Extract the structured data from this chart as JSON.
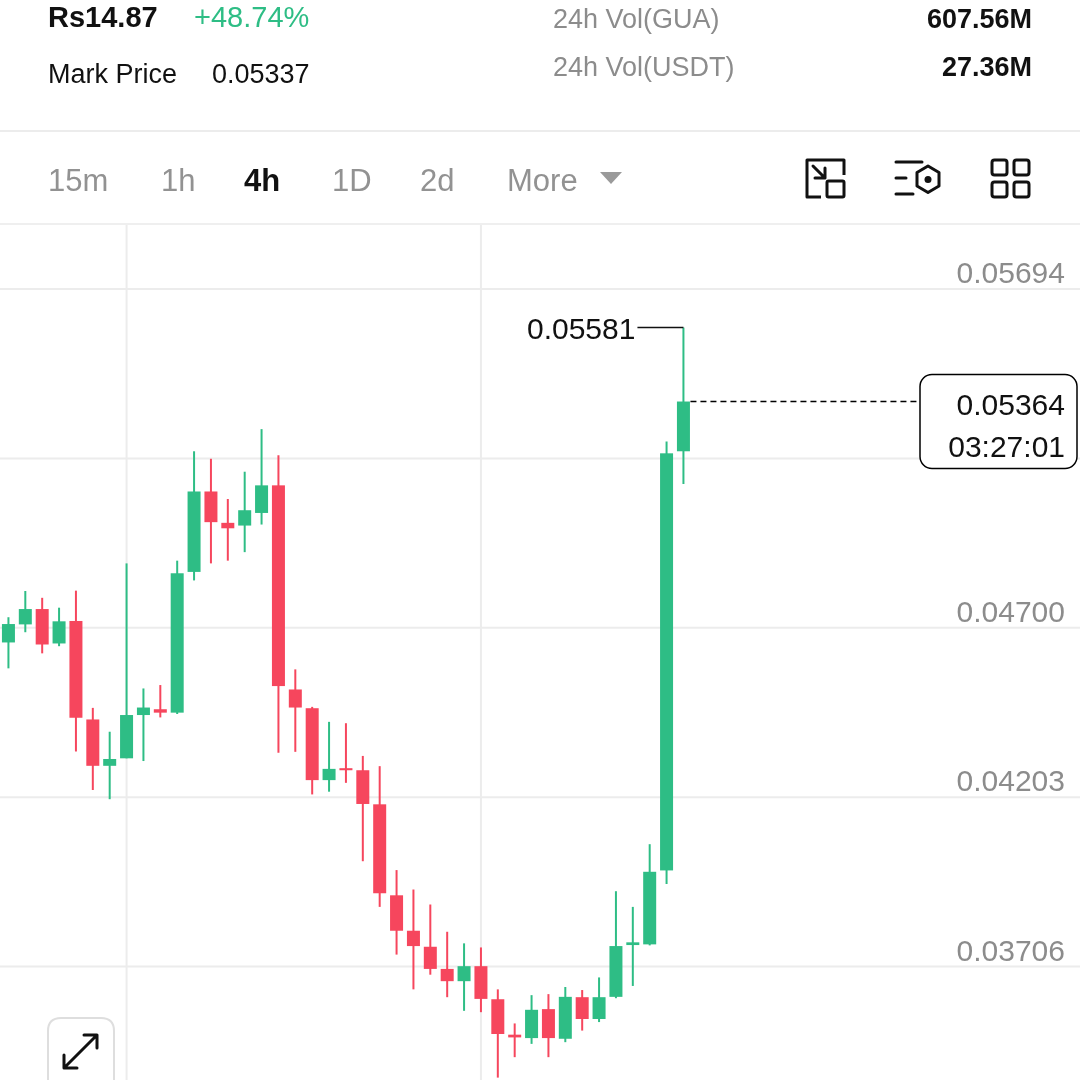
{
  "chart_data": [
    {
      "type": "other",
      "annotations": [
        "Rs14.87",
        "+48.74%",
        "Mark Price",
        "0.05337",
        "24h Vol(GUA)",
        "607.56M",
        "24h Vol(USDT)",
        "27.36M",
        "15m",
        "1h",
        "4h",
        "1D",
        "2d",
        "More"
      ]
    },
    {
      "type": "candlestick",
      "categories": [
        null,
        null,
        null,
        null,
        null,
        null,
        null,
        null,
        null,
        null,
        null,
        null,
        null,
        null,
        null,
        null,
        null,
        null,
        null,
        null,
        null,
        null,
        null,
        null,
        null,
        null,
        null,
        null,
        null,
        null,
        null,
        null,
        null,
        null,
        null,
        null,
        null,
        null,
        null,
        null,
        null,
        null,
        null,
        null,
        null,
        null,
        null,
        null,
        null,
        null,
        null,
        null,
        null,
        null,
        null,
        null,
        null,
        null,
        null,
        null,
        null,
        null,
        null,
        null
      ],
      "ohlc": [
        [
          0.04657,
          0.04731,
          0.04581,
          0.04711
        ],
        [
          0.0471,
          0.04808,
          0.04687,
          0.04755
        ],
        [
          0.04755,
          0.04788,
          0.04625,
          0.04651
        ],
        [
          0.04654,
          0.04759,
          0.04646,
          0.04719
        ],
        [
          0.0472,
          0.04809,
          0.04337,
          0.04436
        ],
        [
          0.04431,
          0.04465,
          0.04224,
          0.04295
        ],
        [
          0.04295,
          0.04395,
          0.04197,
          0.04315
        ],
        [
          0.04317,
          0.04889,
          0.04317,
          0.04444
        ],
        [
          0.04444,
          0.04522,
          0.04309,
          0.04466
        ],
        [
          0.04461,
          0.04532,
          0.04437,
          0.04451
        ],
        [
          0.04451,
          0.04897,
          0.04447,
          0.0486
        ],
        [
          0.04864,
          0.05218,
          0.04839,
          0.051
        ],
        [
          0.051,
          0.05196,
          0.04889,
          0.0501
        ],
        [
          0.05008,
          0.05078,
          0.04897,
          0.04992
        ],
        [
          0.05,
          0.05158,
          0.04922,
          0.05045
        ],
        [
          0.05037,
          0.05283,
          0.05003,
          0.05118
        ],
        [
          0.05118,
          0.05206,
          0.04333,
          0.04529
        ],
        [
          0.04519,
          0.04578,
          0.04336,
          0.04466
        ],
        [
          0.04464,
          0.04468,
          0.04211,
          0.04253
        ],
        [
          0.04253,
          0.04424,
          0.04219,
          0.04286
        ],
        [
          0.04288,
          0.0442,
          0.04245,
          0.04282
        ],
        [
          0.04282,
          0.04324,
          0.04015,
          0.04183
        ],
        [
          0.04182,
          0.04294,
          0.03881,
          0.03921
        ],
        [
          0.03915,
          0.03989,
          0.03741,
          0.03811
        ],
        [
          0.03811,
          0.03932,
          0.03639,
          0.03766
        ],
        [
          0.03764,
          0.03888,
          0.03682,
          0.03699
        ],
        [
          0.03699,
          0.03808,
          0.03616,
          0.03663
        ],
        [
          0.03663,
          0.03774,
          0.03576,
          0.03707
        ],
        [
          0.03707,
          0.03762,
          0.03572,
          0.03611
        ],
        [
          0.0361,
          0.03639,
          0.0338,
          0.03508
        ],
        [
          0.03506,
          0.03539,
          0.0344,
          0.03498
        ],
        [
          0.03496,
          0.03622,
          0.03479,
          0.03579
        ],
        [
          0.03581,
          0.03625,
          0.0344,
          0.03496
        ],
        [
          0.03494,
          0.03646,
          0.03484,
          0.03617
        ],
        [
          0.03616,
          0.03637,
          0.03518,
          0.03552
        ],
        [
          0.03552,
          0.03674,
          0.03543,
          0.03616
        ],
        [
          0.03617,
          0.03927,
          0.03613,
          0.03766
        ],
        [
          0.03769,
          0.03881,
          0.03649,
          0.03777
        ],
        [
          0.03771,
          0.04065,
          0.03768,
          0.03984
        ],
        [
          0.03988,
          0.05247,
          0.03948,
          0.05212
        ],
        [
          0.05218,
          0.05581,
          0.05122,
          0.05364
        ],
        null,
        null,
        null,
        null,
        null,
        null,
        null,
        null,
        null,
        null,
        null,
        null,
        null,
        null,
        null,
        null,
        null,
        null,
        null,
        null,
        null,
        null,
        null
      ],
      "colors": [
        "#2ebd85",
        "#2ebd85",
        "#f6465d",
        "#2ebd85",
        "#f6465d",
        "#f6465d",
        "#2ebd85",
        "#2ebd85",
        "#2ebd85",
        "#f6465d",
        "#2ebd85",
        "#2ebd85",
        "#f6465d",
        "#f6465d",
        "#2ebd85",
        "#2ebd85",
        "#f6465d",
        "#f6465d",
        "#f6465d",
        "#2ebd85",
        "#f6465d",
        "#f6465d",
        "#f6465d",
        "#f6465d",
        "#f6465d",
        "#f6465d",
        "#f6465d",
        "#2ebd85",
        "#f6465d",
        "#f6465d",
        "#f6465d",
        "#2ebd85",
        "#f6465d",
        "#2ebd85",
        "#f6465d",
        "#2ebd85",
        "#2ebd85",
        "#2ebd85",
        "#2ebd85",
        "#2ebd85",
        "#2ebd85",
        null,
        null,
        null,
        null,
        null,
        null,
        null,
        null,
        null,
        null,
        null,
        null,
        null,
        null,
        null,
        null,
        null,
        null,
        null,
        null,
        null,
        null,
        null
      ],
      "ylim": [
        0.03373,
        0.05882
      ],
      "yticks": [
        0.03706,
        0.04203,
        {
          "value": 0.047,
          "label": "0.04700"
        },
        {
          "value": 0.05197,
          "label": null
        },
        0.05694
      ],
      "grid": "y",
      "tick_labels": "y",
      "ref_lines": [
        {
          "axis": "y",
          "value": 0.05364,
          "label": "0.05364",
          "line_style": "dashed",
          "color": "#000000"
        }
      ],
      "annotations": [
        "0.05581",
        "03:27:01"
      ]
    }
  ]
}
